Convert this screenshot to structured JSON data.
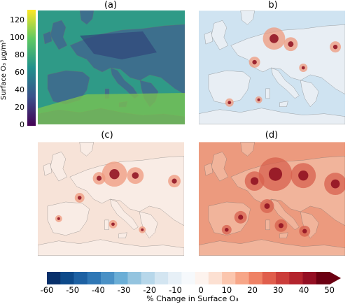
{
  "panels": [
    {
      "label": "(a)",
      "variable": "Surface O3 concentration",
      "colormap": "viridis"
    },
    {
      "label": "b)",
      "variable": "% change in surface O3",
      "colormap": "RdBu_r"
    },
    {
      "label": "(c)",
      "variable": "% change in surface O3",
      "colormap": "RdBu_r"
    },
    {
      "label": "(d)",
      "variable": "% change in surface O3",
      "colormap": "RdBu_r"
    }
  ],
  "colorbar_abs": {
    "label": "Surface O₃ μg/m³",
    "ticks": [
      "0",
      "20",
      "40",
      "60",
      "80",
      "100",
      "120"
    ],
    "colors": [
      "#440154",
      "#3b528b",
      "#21918c",
      "#5ec962",
      "#fde725"
    ]
  },
  "colorbar_change": {
    "label": "% Change in Surface O₃",
    "ticks": [
      "-60",
      "-50",
      "-40",
      "-30",
      "-20",
      "-10",
      "0",
      "10",
      "20",
      "30",
      "40",
      "50"
    ],
    "colors": [
      "#08306b",
      "#0d4a8a",
      "#1d61a3",
      "#2f77b5",
      "#4a91c6",
      "#6baed6",
      "#94c4df",
      "#b7d7ea",
      "#d3e5f1",
      "#e7f0f7",
      "#f6f9fc",
      "#fdf3ee",
      "#fce0d2",
      "#fbc6ae",
      "#f7a688",
      "#ef8265",
      "#e05e4c",
      "#cb3d3a",
      "#b3242d",
      "#940f23",
      "#6b0012"
    ]
  },
  "map_colors": {
    "ocean_a": "#2f9a87",
    "land_a": "#3d6f8d",
    "high_a": "#7ec44f",
    "ocean_b": "#cfe3f1",
    "land_b": "#e8eef4",
    "ocean_c": "#f7e3d8",
    "land_c": "#f9ece5",
    "ocean_d": "#ec9a7e",
    "land_d": "#f1b49b",
    "hot": "#8d0d1e"
  }
}
